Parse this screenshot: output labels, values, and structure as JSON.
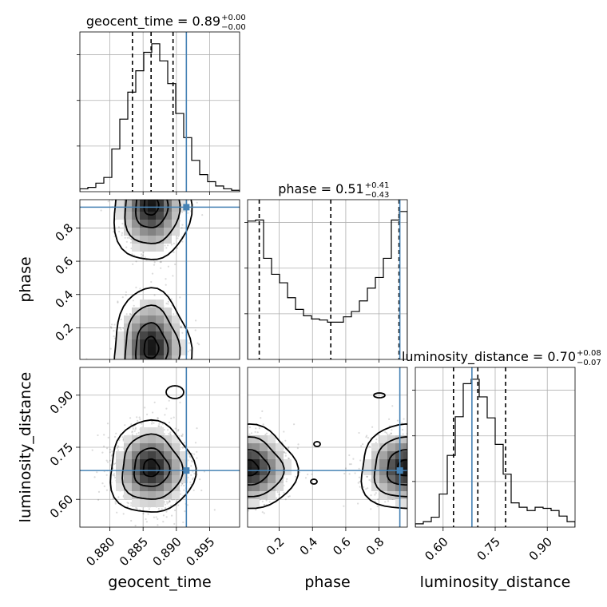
{
  "chart_data": {
    "type": "corner",
    "parameters": [
      "geocent_time",
      "phase",
      "luminosity_distance"
    ],
    "titles": [
      {
        "param": "geocent_time",
        "prefix": "geocent_time = ",
        "median": "0.89",
        "plus": "+0.00",
        "minus": "−0.00"
      },
      {
        "param": "phase",
        "prefix": "phase = ",
        "median": "0.51",
        "plus": "+0.41",
        "minus": "−0.43"
      },
      {
        "param": "luminosity_distance",
        "prefix": "luminosity_distance = ",
        "median": "0.70",
        "plus": "+0.08",
        "minus": "−0.07"
      }
    ],
    "ranges": {
      "geocent_time": [
        0.8755,
        0.8995
      ],
      "phase": [
        0.01,
        0.97
      ],
      "luminosity_distance": [
        0.52,
        0.98
      ]
    },
    "ticks": {
      "geocent_time": [
        0.88,
        0.885,
        0.89,
        0.895
      ],
      "phase": [
        0.2,
        0.4,
        0.6,
        0.8
      ],
      "luminosity_distance": [
        0.6,
        0.75,
        0.9
      ]
    },
    "tick_labels": {
      "geocent_time": [
        "0.880",
        "0.885",
        "0.890",
        "0.895"
      ],
      "phase": [
        "0.2",
        "0.4",
        "0.6",
        "0.8"
      ],
      "luminosity_distance": [
        "0.60",
        "0.75",
        "0.90"
      ]
    },
    "truths": {
      "geocent_time": 0.8915,
      "phase": 0.925,
      "luminosity_distance": 0.683
    },
    "quantiles": {
      "geocent_time": [
        0.8834,
        0.8862,
        0.8895
      ],
      "phase": [
        0.08,
        0.51,
        0.92
      ],
      "luminosity_distance": [
        0.63,
        0.7,
        0.78
      ]
    },
    "histograms": {
      "geocent_time": {
        "edges": [
          0.8755,
          0.8767,
          0.8779,
          0.8791,
          0.8803,
          0.8815,
          0.8827,
          0.8839,
          0.8851,
          0.8863,
          0.8875,
          0.8887,
          0.8899,
          0.8911,
          0.8923,
          0.8935,
          0.8947,
          0.8959,
          0.8971,
          0.8983,
          0.8995
        ],
        "counts": [
          2,
          3,
          6,
          10,
          30,
          51,
          70,
          85,
          98,
          104,
          92,
          76,
          55,
          38,
          22,
          12,
          7,
          4,
          2,
          1
        ]
      },
      "phase": {
        "edges": [
          0.01,
          0.058,
          0.106,
          0.154,
          0.202,
          0.25,
          0.298,
          0.346,
          0.394,
          0.442,
          0.49,
          0.538,
          0.586,
          0.634,
          0.682,
          0.73,
          0.778,
          0.826,
          0.874,
          0.922,
          0.97
        ],
        "counts": [
          130,
          131,
          95,
          80,
          72,
          58,
          47,
          41,
          38,
          37,
          35,
          35,
          40,
          45,
          55,
          67,
          77,
          95,
          131,
          139
        ]
      },
      "luminosity_distance": {
        "edges": [
          0.52,
          0.543,
          0.566,
          0.589,
          0.612,
          0.635,
          0.658,
          0.681,
          0.704,
          0.727,
          0.75,
          0.773,
          0.796,
          0.819,
          0.842,
          0.865,
          0.888,
          0.911,
          0.934,
          0.957,
          0.98
        ],
        "counts": [
          3,
          5,
          9,
          30,
          65,
          100,
          130,
          134,
          118,
          99,
          75,
          48,
          22,
          18,
          15,
          18,
          17,
          15,
          10,
          5
        ]
      }
    },
    "grid": true
  }
}
